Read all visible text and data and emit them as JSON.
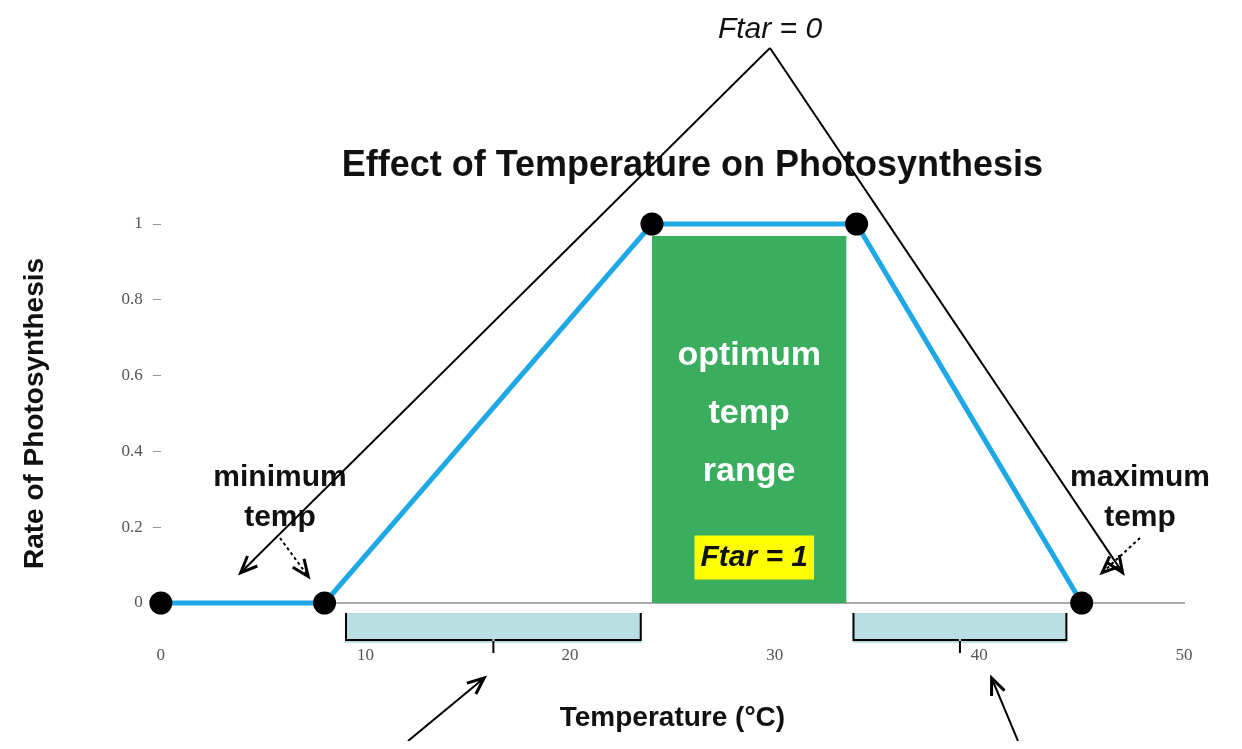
{
  "chart_data": {
    "type": "line",
    "title": "Effect of Temperature on Photosynthesis",
    "xlabel": "Temperature (°C)",
    "ylabel": "Rate of Photosynthesis",
    "x": [
      0,
      8,
      24,
      34,
      45
    ],
    "series": [
      {
        "color": "#1fa8e6",
        "values": [
          0,
          0,
          1,
          1,
          0
        ]
      }
    ],
    "xlim": [
      0,
      50
    ],
    "xticks": [
      0,
      10,
      20,
      30,
      40,
      50
    ],
    "ylim": [
      0,
      1
    ],
    "yticks": [
      0,
      0.2,
      0.4,
      0.6,
      0.8,
      1
    ],
    "bands": [
      {
        "axis": "x",
        "from": 24,
        "to": 33.5,
        "label": "optimum temp range",
        "color": "#3aad5e"
      }
    ],
    "annotations": [
      "Ftar = 0",
      "minimum temp",
      "maximum temp",
      "Ftar = 1"
    ],
    "marker": "circle",
    "grid": false,
    "legend": false
  }
}
